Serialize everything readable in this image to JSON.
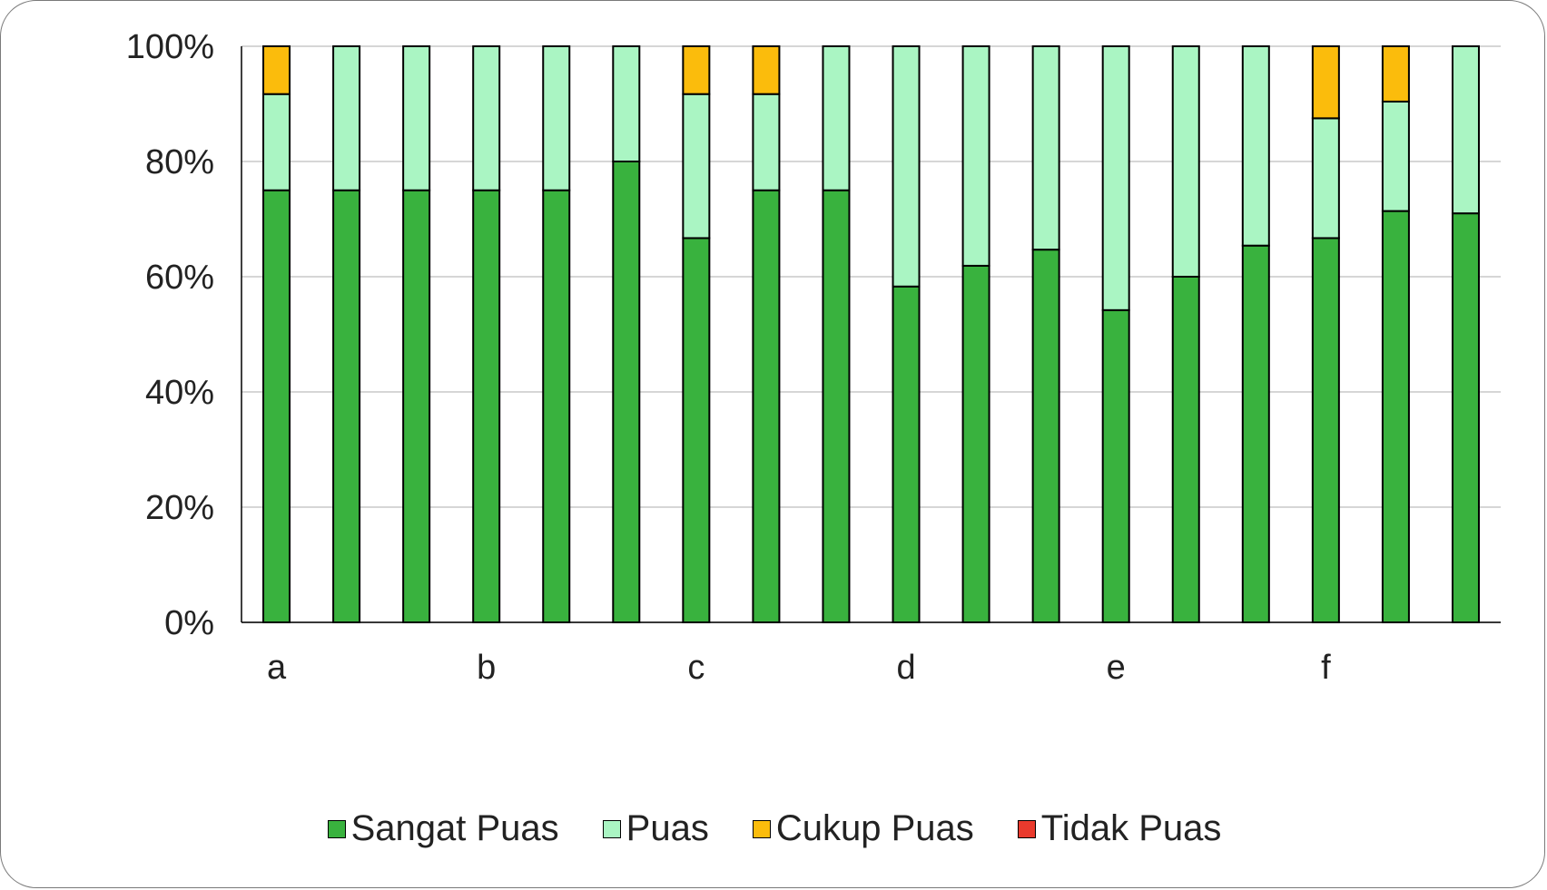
{
  "chart_data": {
    "type": "bar",
    "stacked": true,
    "percent": true,
    "categories": [
      "a",
      "",
      "",
      "b",
      "",
      "",
      "c",
      "",
      "",
      "d",
      "",
      "",
      "e",
      "",
      "",
      "f",
      "",
      ""
    ],
    "group_labels": [
      "a",
      "b",
      "c",
      "d",
      "e",
      "f"
    ],
    "series": [
      {
        "name": "Sangat Puas",
        "color": "#39b23e",
        "values": [
          75,
          75,
          75,
          75,
          75,
          80,
          66.7,
          75,
          75,
          58.3,
          61.9,
          64.7,
          54.2,
          60,
          65.4,
          66.7,
          71.4,
          71
        ]
      },
      {
        "name": "Puas",
        "color": "#aaf5c3",
        "values": [
          16.7,
          25,
          25,
          25,
          25,
          20,
          25,
          16.7,
          25,
          41.7,
          38.1,
          35.3,
          45.8,
          40,
          34.6,
          20.8,
          19,
          29
        ]
      },
      {
        "name": "Cukup Puas",
        "color": "#fbbc0c",
        "values": [
          8.3,
          0,
          0,
          0,
          0,
          0,
          8.3,
          8.3,
          0,
          0,
          0,
          0,
          0,
          0,
          0,
          12.5,
          9.6,
          0
        ]
      },
      {
        "name": "Tidak Puas",
        "color": "#ea3a2d",
        "values": [
          0,
          0,
          0,
          0,
          0,
          0,
          0,
          0,
          0,
          0,
          0,
          0,
          0,
          0,
          0,
          0,
          0,
          0
        ]
      }
    ],
    "y_ticks": [
      "0%",
      "20%",
      "40%",
      "60%",
      "80%",
      "100%"
    ],
    "ylim": [
      0,
      100
    ],
    "grid": true,
    "legend_position": "bottom",
    "title": "",
    "xlabel": "",
    "ylabel": ""
  }
}
